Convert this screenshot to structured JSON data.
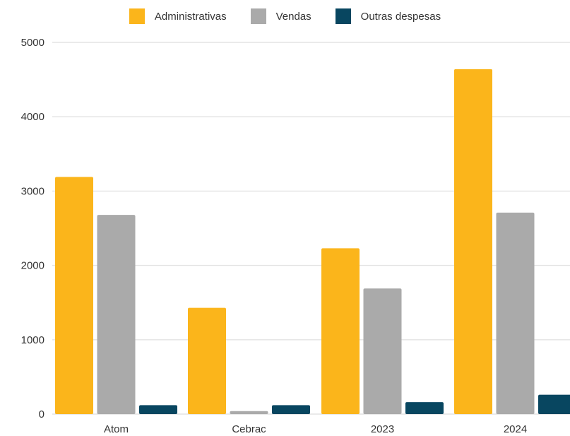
{
  "chart_data": {
    "type": "bar",
    "categories": [
      "Atom",
      "Cebrac",
      "2023",
      "2024"
    ],
    "series": [
      {
        "name": "Administrativas",
        "values": [
          3190,
          1430,
          2230,
          4640
        ],
        "color": "#fbb51b"
      },
      {
        "name": "Vendas",
        "values": [
          2680,
          40,
          1690,
          2710
        ],
        "color": "#aaaaaa"
      },
      {
        "name": "Outras despesas",
        "values": [
          120,
          120,
          160,
          260
        ],
        "color": "#084660"
      }
    ],
    "y_ticks": [
      "0",
      "1000",
      "2000",
      "3000",
      "4000",
      "5000"
    ],
    "ylim": [
      0,
      5000
    ],
    "grid": true,
    "legend_position": "top-center",
    "title": "",
    "xlabel": "",
    "ylabel": ""
  }
}
